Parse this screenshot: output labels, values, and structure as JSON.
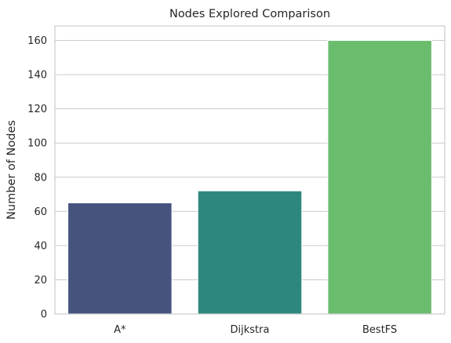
{
  "chart_data": {
    "type": "bar",
    "title": "Nodes Explored Comparison",
    "xlabel": "",
    "ylabel": "Number of Nodes",
    "categories": [
      "A*",
      "Dijkstra",
      "BestFS"
    ],
    "values": [
      65,
      72,
      160
    ],
    "colors": [
      "#46537f",
      "#2e877f",
      "#6bbd6e"
    ],
    "ylim": [
      0,
      168.5
    ],
    "yticks": [
      0,
      20,
      40,
      60,
      80,
      100,
      120,
      140,
      160
    ],
    "grid": "horizontal",
    "background": "#ffffff",
    "grid_color": "#cccccc"
  }
}
